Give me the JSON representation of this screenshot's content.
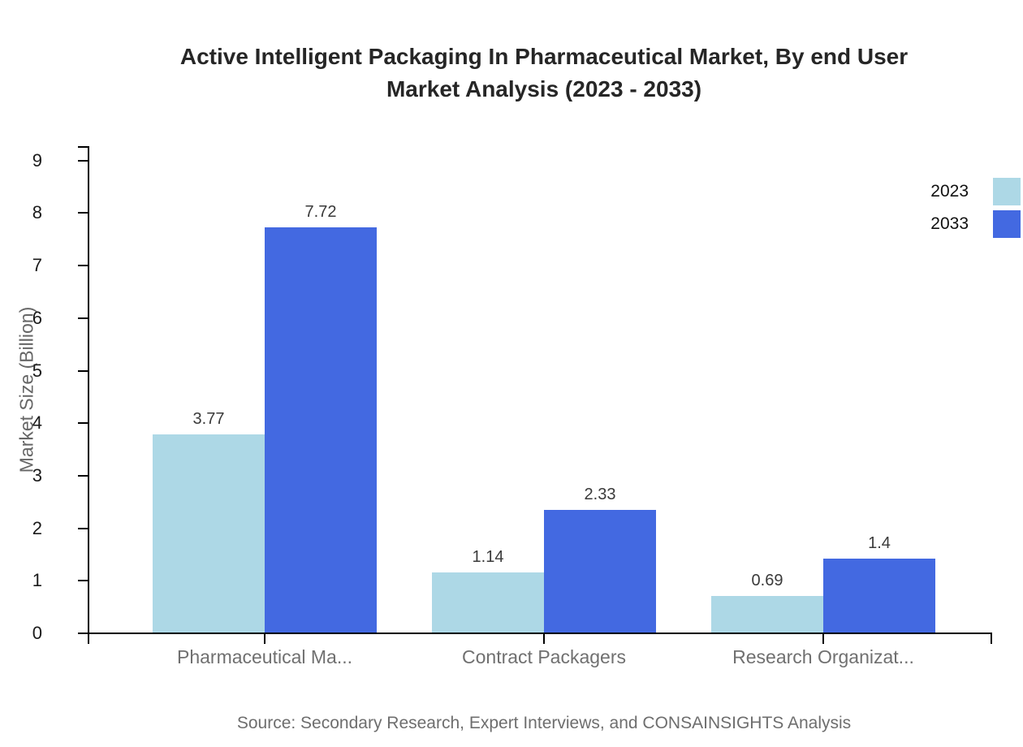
{
  "chart_data": {
    "type": "bar",
    "title": "Active Intelligent Packaging In Pharmaceutical Market, By end User Market Analysis (2023 - 2033)",
    "title_lines": [
      "Active Intelligent Packaging In Pharmaceutical Market, By end User",
      "Market Analysis (2023 - 2033)"
    ],
    "ylabel": "Market Size (Billion)",
    "xlabel": "",
    "categories": [
      "Pharmaceutical Ma...",
      "Contract Packagers",
      "Research Organizat..."
    ],
    "series": [
      {
        "name": "2023",
        "color": "#add8e6",
        "values": [
          3.77,
          1.14,
          0.69
        ],
        "labels": [
          "3.77",
          "1.14",
          "0.69"
        ]
      },
      {
        "name": "2033",
        "color": "#4369e1",
        "values": [
          7.72,
          2.33,
          1.4
        ],
        "labels": [
          "7.72",
          "2.33",
          "1.4"
        ]
      }
    ],
    "yticks": [
      0,
      1,
      2,
      3,
      4,
      5,
      6,
      7,
      8,
      9
    ],
    "ylim": [
      0,
      9.3
    ],
    "grid": false,
    "legend_position": "top-right",
    "source": "Source: Secondary Research, Expert Interviews, and CONSAINSIGHTS Analysis"
  },
  "colors": {
    "background": "#ffffff",
    "axis": "#000000",
    "title_text": "#262626",
    "ytick_label": "#1a1a1a",
    "category_label": "#707070",
    "value_label": "#3a3a3a",
    "axis_title": "#666666",
    "source_text": "#6e6e6e",
    "series_2023": "#add8e6",
    "series_2033": "#4369e1"
  }
}
